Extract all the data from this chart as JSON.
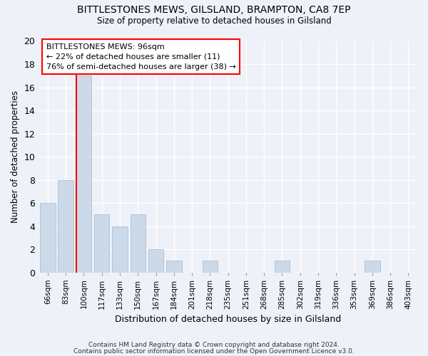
{
  "title": "BITTLESTONES MEWS, GILSLAND, BRAMPTON, CA8 7EP",
  "subtitle": "Size of property relative to detached houses in Gilsland",
  "xlabel": "Distribution of detached houses by size in Gilsland",
  "ylabel": "Number of detached properties",
  "categories": [
    "66sqm",
    "83sqm",
    "100sqm",
    "117sqm",
    "133sqm",
    "150sqm",
    "167sqm",
    "184sqm",
    "201sqm",
    "218sqm",
    "235sqm",
    "251sqm",
    "268sqm",
    "285sqm",
    "302sqm",
    "319sqm",
    "336sqm",
    "353sqm",
    "369sqm",
    "386sqm",
    "403sqm"
  ],
  "values": [
    6,
    8,
    17,
    5,
    4,
    5,
    2,
    1,
    0,
    1,
    0,
    0,
    0,
    1,
    0,
    0,
    0,
    0,
    1,
    0,
    0
  ],
  "bar_color": "#ccd9e8",
  "bar_edge_color": "#a0b8d0",
  "red_line_index": 2,
  "annotation_text": "BITTLESTONES MEWS: 96sqm\n← 22% of detached houses are smaller (11)\n76% of semi-detached houses are larger (38) →",
  "annotation_box_color": "white",
  "annotation_box_edge": "red",
  "red_line_color": "red",
  "footer1": "Contains HM Land Registry data © Crown copyright and database right 2024.",
  "footer2": "Contains public sector information licensed under the Open Government Licence v3.0.",
  "ylim": [
    0,
    20
  ],
  "yticks": [
    0,
    2,
    4,
    6,
    8,
    10,
    12,
    14,
    16,
    18,
    20
  ],
  "background_color": "#eef2f8",
  "grid_color": "white"
}
